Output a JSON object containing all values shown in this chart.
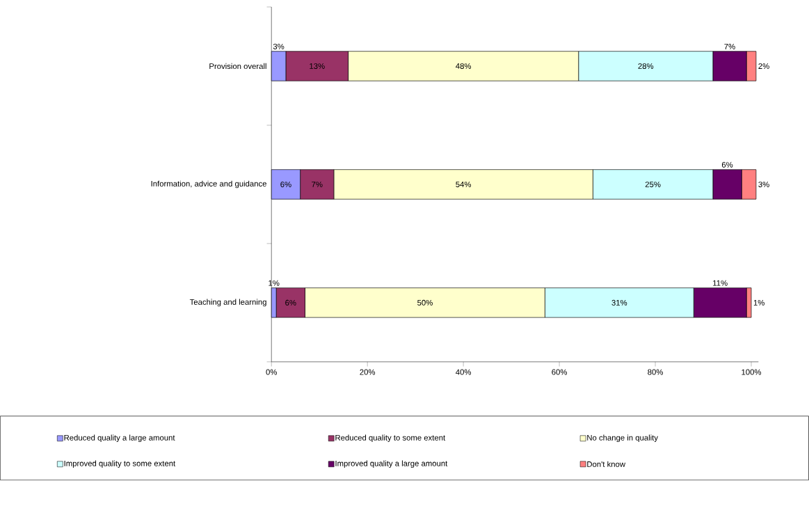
{
  "chart_data": {
    "type": "bar",
    "orientation": "horizontal",
    "stacked": true,
    "categories": [
      "Provision overall",
      "Information, advice and guidance",
      "Teaching and learning"
    ],
    "series": [
      {
        "name": "Reduced quality a large amount",
        "color": "#9999ff",
        "values": [
          3,
          6,
          1
        ],
        "value_labels": [
          "3%",
          "6%",
          "1%"
        ]
      },
      {
        "name": "Reduced quality to some extent",
        "color": "#993366",
        "values": [
          13,
          7,
          6
        ],
        "value_labels": [
          "13%",
          "7%",
          "6%"
        ]
      },
      {
        "name": "No change in quality",
        "color": "#ffffcc",
        "values": [
          48,
          54,
          50
        ],
        "value_labels": [
          "48%",
          "54%",
          "50%"
        ]
      },
      {
        "name": "Improved quality to some extent",
        "color": "#ccffff",
        "values": [
          28,
          25,
          31
        ],
        "value_labels": [
          "28%",
          "25%",
          "31%"
        ]
      },
      {
        "name": "Improved quality a large amount",
        "color": "#660066",
        "values": [
          7,
          6,
          11
        ],
        "value_labels": [
          "7%",
          "6%",
          "11%"
        ]
      },
      {
        "name": "Don't know",
        "color": "#ff8080",
        "values": [
          2,
          3,
          1
        ],
        "value_labels": [
          "2%",
          "3%",
          "1%"
        ]
      }
    ],
    "xlim": [
      0,
      101.5
    ],
    "xticks": [
      {
        "value": 0,
        "label": "0%"
      },
      {
        "value": 20,
        "label": "20%"
      },
      {
        "value": 40,
        "label": "40%"
      },
      {
        "value": 60,
        "label": "60%"
      },
      {
        "value": 80,
        "label": "80%"
      },
      {
        "value": 100,
        "label": "100%"
      }
    ],
    "legend": "bottom",
    "grid": false
  }
}
